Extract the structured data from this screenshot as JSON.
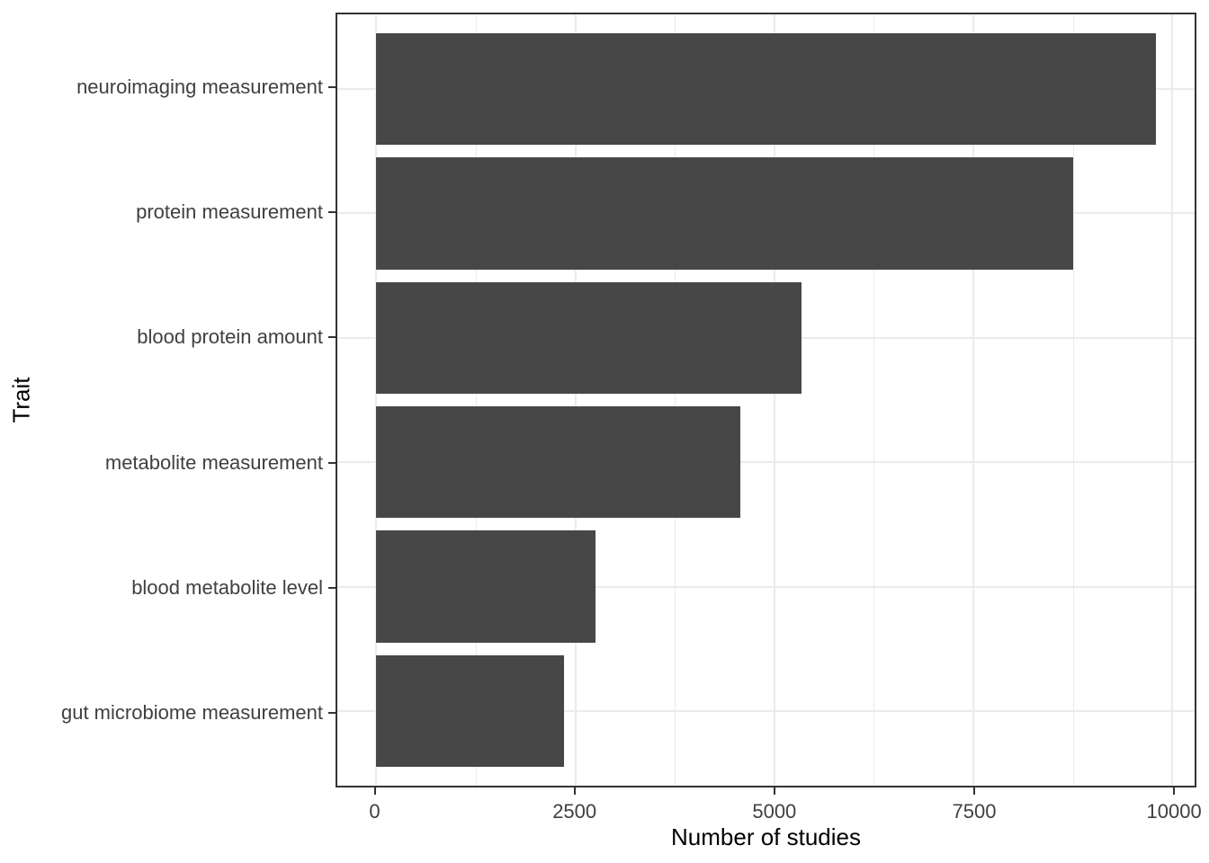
{
  "chart_data": {
    "type": "bar",
    "orientation": "horizontal",
    "title": "",
    "xlabel": "Number of studies",
    "ylabel": "Trait",
    "categories": [
      "neuroimaging measurement",
      "protein measurement",
      "blood protein amount",
      "metabolite measurement",
      "blood metabolite level",
      "gut microbiome measurement"
    ],
    "values": [
      9790,
      8760,
      5340,
      4570,
      2750,
      2360
    ],
    "x_ticks": [
      0,
      2500,
      5000,
      7500,
      10000
    ],
    "x_tick_labels": [
      "0",
      "2500",
      "5000",
      "7500",
      "10000"
    ],
    "x_minor_ticks": [
      1250,
      3750,
      6250,
      8750
    ],
    "xlim": [
      -490,
      10280
    ],
    "grid": true,
    "legend": false,
    "colors": {
      "bar_fill": "#474747",
      "panel_border": "#333333",
      "grid_major": "#ebebeb",
      "grid_minor": "#ebebeb",
      "tick_mark": "#333333",
      "tick_label": "#404040",
      "axis_title": "#000000",
      "background": "#ffffff"
    }
  }
}
